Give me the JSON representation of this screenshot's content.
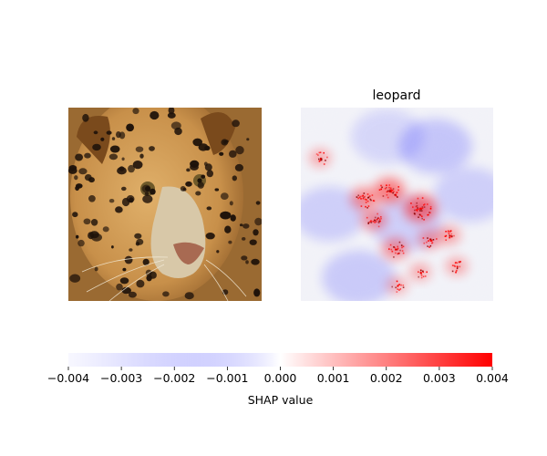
{
  "chart_data": {
    "type": "heatmap",
    "panels": [
      {
        "kind": "input-image",
        "title": "",
        "subject": "jaguar face close-up",
        "palette": {
          "background_warm": "#9a6a32",
          "fur_light": "#e0b06a",
          "fur_mid": "#c8904a",
          "fur_dark": "#7a4a1c",
          "muzzle": "#d8c8a8",
          "nose": "#a86a52",
          "eye": "#6f5a2a",
          "spot": "#1e120a"
        }
      },
      {
        "kind": "shap-overlay",
        "title": "leopard",
        "overlay_base_color": "#f4f4f8",
        "hotspots": [
          {
            "u": 0.46,
            "v": 0.43,
            "value": 0.0035
          },
          {
            "u": 0.62,
            "v": 0.52,
            "value": 0.004
          },
          {
            "u": 0.33,
            "v": 0.47,
            "value": 0.0025
          },
          {
            "u": 0.38,
            "v": 0.58,
            "value": 0.002
          },
          {
            "u": 0.49,
            "v": 0.73,
            "value": 0.0022
          },
          {
            "u": 0.67,
            "v": 0.68,
            "value": 0.0015
          },
          {
            "u": 0.77,
            "v": 0.66,
            "value": 0.0012
          },
          {
            "u": 0.81,
            "v": 0.82,
            "value": 0.001
          },
          {
            "u": 0.62,
            "v": 0.85,
            "value": 0.0008
          },
          {
            "u": 0.1,
            "v": 0.26,
            "value": 0.0009
          },
          {
            "u": 0.5,
            "v": 0.92,
            "value": 0.0007
          }
        ],
        "negative_regions": [
          {
            "u": 0.7,
            "v": 0.2,
            "value": -0.0008
          },
          {
            "u": 0.15,
            "v": 0.55,
            "value": -0.0006
          },
          {
            "u": 0.3,
            "v": 0.88,
            "value": -0.0007
          },
          {
            "u": 0.88,
            "v": 0.45,
            "value": -0.0006
          },
          {
            "u": 0.45,
            "v": 0.15,
            "value": -0.0005
          },
          {
            "u": 0.55,
            "v": 0.6,
            "value": -0.0006
          }
        ]
      }
    ],
    "colorbar": {
      "min": -0.004,
      "max": 0.004,
      "ticks": [
        "−0.004",
        "−0.003",
        "−0.002",
        "−0.001",
        "0.000",
        "0.001",
        "0.002",
        "0.003",
        "0.004"
      ],
      "tick_values": [
        -0.004,
        -0.003,
        -0.002,
        -0.001,
        0.0,
        0.001,
        0.002,
        0.003,
        0.004
      ],
      "label": "SHAP value",
      "colors": {
        "negative": "#0000ff",
        "zero": "#ffffff",
        "positive": "#ff0000"
      }
    }
  }
}
